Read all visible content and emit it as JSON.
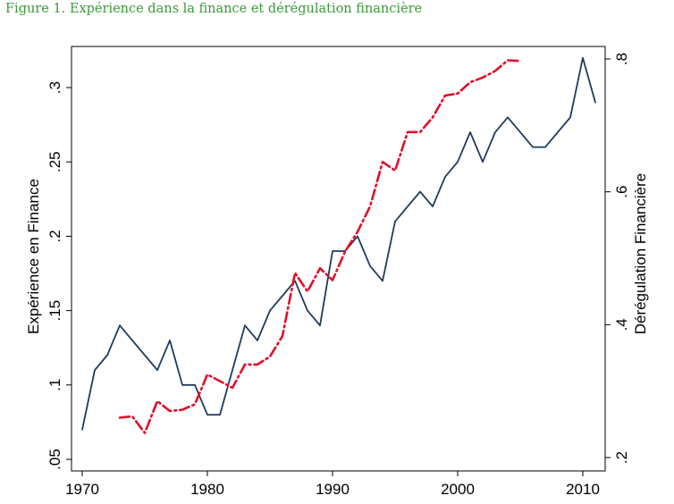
{
  "caption": "Figure 1. Expérience dans la finance et dérégulation financière",
  "chart_data": {
    "type": "line",
    "title": "",
    "xlabel": "",
    "ylabel": "Expérience en Finance",
    "y2label": "Dérégulation Financière",
    "xlim": [
      1970,
      2011
    ],
    "ylim": [
      0.05,
      0.32
    ],
    "y2lim": [
      0.2,
      0.8
    ],
    "xticks": [
      1970,
      1980,
      1990,
      2000,
      2010
    ],
    "xtick_labels": [
      "1970",
      "1980",
      "1990",
      "2000",
      "2010"
    ],
    "yticks": [
      0.05,
      0.1,
      0.15,
      0.2,
      0.25,
      0.3
    ],
    "ytick_labels": [
      ".05",
      ".1",
      ".15",
      ".2",
      ".25",
      ".3"
    ],
    "y2ticks": [
      0.2,
      0.4,
      0.6,
      0.8
    ],
    "y2tick_labels": [
      ".2",
      ".4",
      ".6",
      ".8"
    ],
    "grid": false,
    "legend": "none",
    "series": [
      {
        "axis": "left",
        "color": "#1f3b5c",
        "style": "solid",
        "x": [
          1970,
          1971,
          1972,
          1973,
          1974,
          1975,
          1976,
          1977,
          1978,
          1979,
          1980,
          1981,
          1982,
          1983,
          1984,
          1985,
          1986,
          1987,
          1988,
          1989,
          1990,
          1991,
          1992,
          1993,
          1994,
          1995,
          1996,
          1997,
          1998,
          1999,
          2000,
          2001,
          2002,
          2003,
          2004,
          2005,
          2006,
          2007,
          2008,
          2009,
          2010,
          2011
        ],
        "y": [
          0.07,
          0.11,
          0.12,
          0.14,
          0.13,
          0.12,
          0.11,
          0.13,
          0.1,
          0.1,
          0.08,
          0.08,
          0.11,
          0.14,
          0.13,
          0.15,
          0.16,
          0.17,
          0.15,
          0.14,
          0.19,
          0.19,
          0.2,
          0.18,
          0.17,
          0.21,
          0.22,
          0.23,
          0.22,
          0.24,
          0.25,
          0.27,
          0.25,
          0.27,
          0.28,
          0.27,
          0.26,
          0.26,
          0.27,
          0.28,
          0.32,
          0.29
        ]
      },
      {
        "axis": "right",
        "color": "#e0102a",
        "style": "dashdot",
        "x": [
          1973,
          1974,
          1975,
          1976,
          1977,
          1978,
          1979,
          1980,
          1981,
          1982,
          1983,
          1984,
          1985,
          1986,
          1987,
          1988,
          1989,
          1990,
          1991,
          1992,
          1993,
          1994,
          1995,
          1996,
          1997,
          1998,
          1999,
          2000,
          2001,
          2002,
          2003,
          2004,
          2005
        ],
        "y": [
          0.26,
          0.262,
          0.237,
          0.285,
          0.27,
          0.272,
          0.28,
          0.325,
          0.315,
          0.305,
          0.34,
          0.34,
          0.352,
          0.383,
          0.478,
          0.45,
          0.485,
          0.467,
          0.51,
          0.54,
          0.578,
          0.645,
          0.632,
          0.69,
          0.69,
          0.712,
          0.745,
          0.748,
          0.765,
          0.772,
          0.782,
          0.798,
          0.797
        ]
      }
    ]
  }
}
